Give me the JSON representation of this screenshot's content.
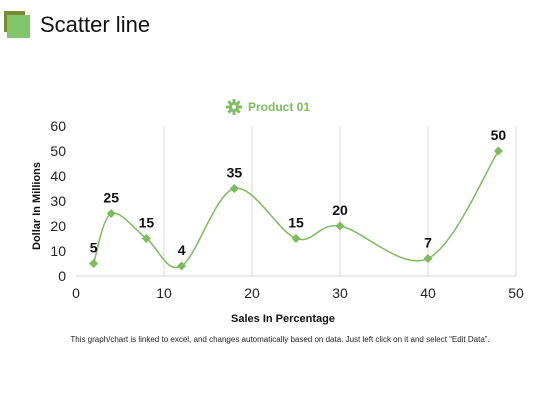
{
  "page": {
    "title": "Scatter line"
  },
  "colors": {
    "accent": "#82c46a",
    "accent_dark": "#7a8a32",
    "series": "#7cbb5e",
    "grid": "#d9d9d9"
  },
  "footnote": "This graph/chart is linked to excel, and changes automatically based on data. Just left click on it and select “Edit Data”.",
  "chart_data": {
    "type": "scatter",
    "title": "",
    "xlabel": "Sales In Percentage",
    "ylabel": "Dollar In Millions",
    "xlim": [
      0,
      50
    ],
    "ylim": [
      0,
      60
    ],
    "xticks": [
      0,
      10,
      20,
      30,
      40,
      50
    ],
    "yticks": [
      0,
      10,
      20,
      30,
      40,
      50,
      60
    ],
    "grid": "vertical",
    "legend": "top-center",
    "smooth_line": true,
    "series": [
      {
        "name": "Product 01",
        "color": "#7cbb5e",
        "marker": "diamond",
        "x": [
          2,
          4,
          8,
          12,
          18,
          25,
          30,
          40,
          48
        ],
        "y": [
          5,
          25,
          15,
          4,
          35,
          15,
          20,
          7,
          50
        ],
        "labels": [
          "5",
          "25",
          "15",
          "4",
          "35",
          "15",
          "20",
          "7",
          "50"
        ]
      }
    ]
  }
}
